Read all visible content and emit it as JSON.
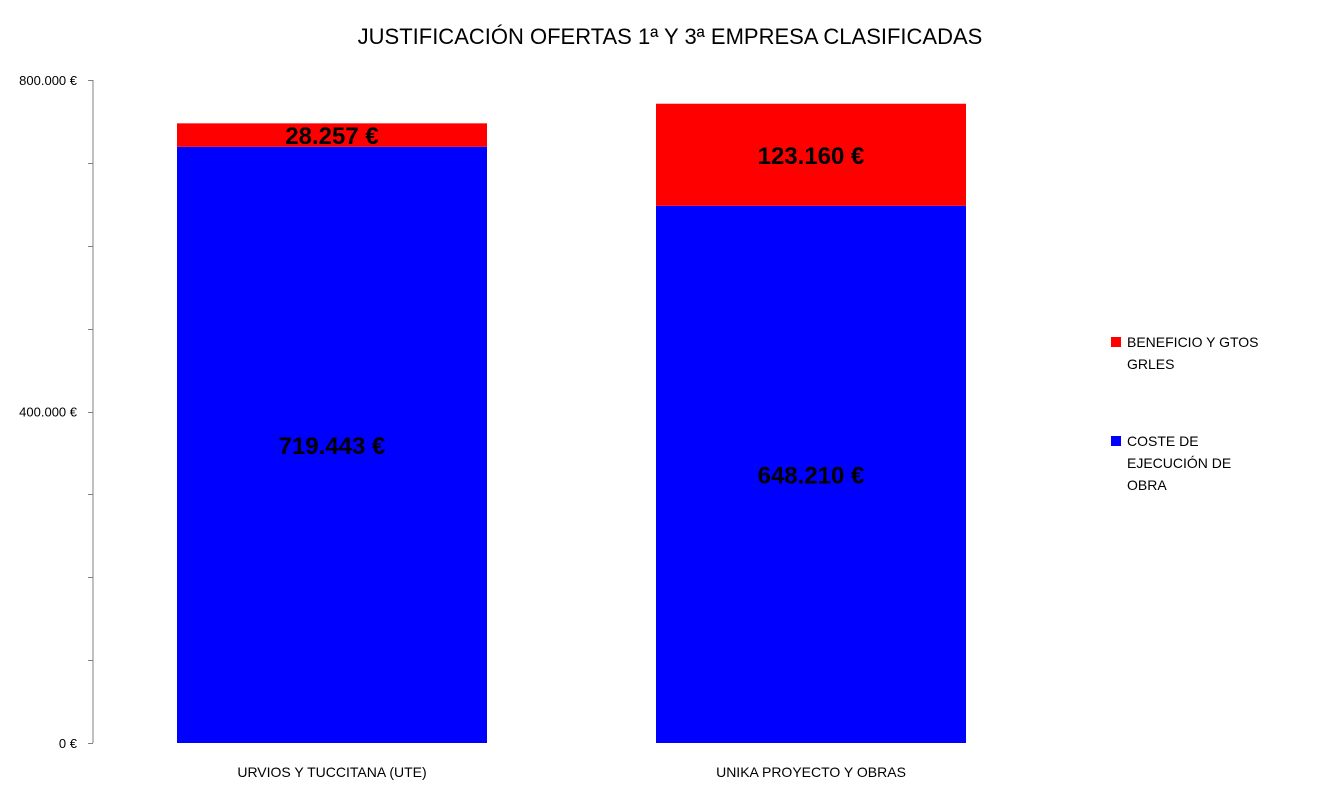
{
  "chart_data": {
    "type": "bar",
    "stacked": true,
    "title": "JUSTIFICACIÓN OFERTAS 1ª Y 3ª EMPRESA CLASIFICADAS",
    "xlabel": "",
    "ylabel": "",
    "ylim": [
      0,
      800000
    ],
    "y_tick_labels": [
      {
        "value": 0,
        "label": "0 €"
      },
      {
        "value": 400000,
        "label": "400.000 €"
      },
      {
        "value": 800000,
        "label": "800.000 €"
      }
    ],
    "y_minor_ticks": [
      0,
      100000,
      200000,
      300000,
      400000,
      500000,
      600000,
      700000,
      800000
    ],
    "grid": false,
    "legend_position": "right",
    "categories": [
      "URVIOS Y TUCCITANA (UTE)",
      "UNIKA PROYECTO Y OBRAS"
    ],
    "series": [
      {
        "name": "COSTE DE EJECUCIÓN DE OBRA",
        "legend_lines": [
          "COSTE DE",
          "EJECUCIÓN DE",
          "OBRA"
        ],
        "color": "#0000ff",
        "values": [
          719443,
          648210
        ],
        "labels": [
          "719.443 €",
          "648.210 €"
        ]
      },
      {
        "name": "BENEFICIO Y GTOS GRLES",
        "legend_lines": [
          "BENEFICIO Y GTOS",
          "GRLES"
        ],
        "color": "#ff0000",
        "values": [
          28257,
          123160
        ],
        "labels": [
          "28.257 €",
          "123.160 €"
        ]
      }
    ],
    "legend_order": [
      1,
      0
    ]
  }
}
